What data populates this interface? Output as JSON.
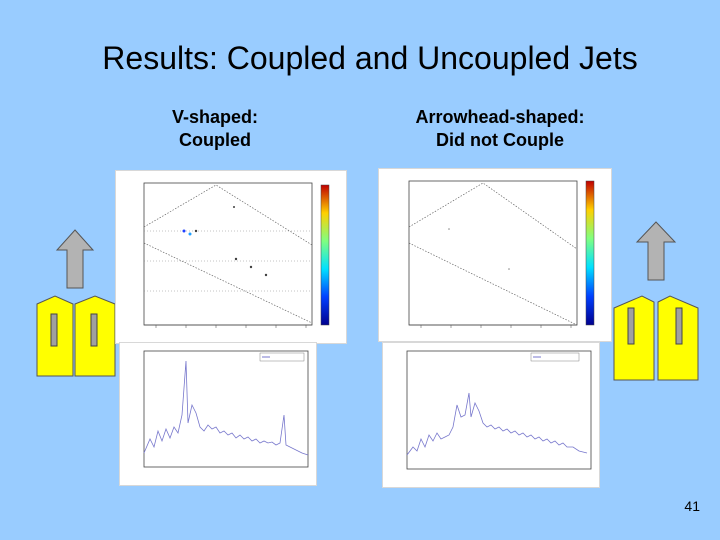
{
  "slide": {
    "title": "Results: Coupled and Uncoupled Jets",
    "left_label": "V-shaped:\nCoupled",
    "right_label": "Arrowhead-shaped:\nDid not Couple",
    "page_number": "41"
  },
  "colors": {
    "background": "#99ccff",
    "nozzle_fill": "#ffff00",
    "nozzle_bar": "#a0a0a0",
    "arrow_fill": "#b3b3b3",
    "spectrum_line": "#7777cc"
  },
  "icons": [
    "up-arrow-icon",
    "nozzle-icon",
    "colorbar"
  ]
}
